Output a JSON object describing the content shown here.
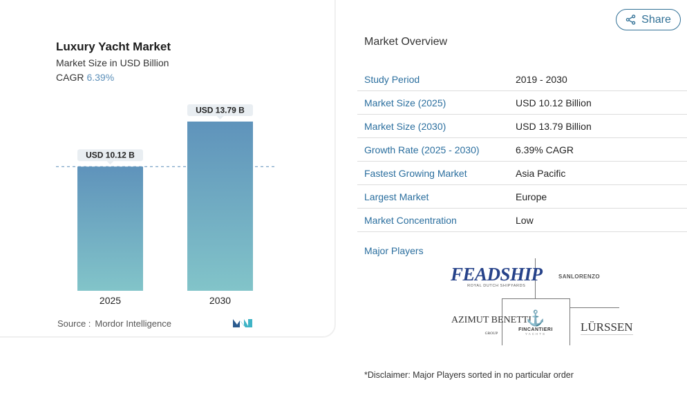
{
  "card": {
    "title": "Luxury Yacht Market",
    "subtitle": "Market Size in USD Billion",
    "cagr_label": "CAGR",
    "cagr_value": "6.39%",
    "source_label": "Source :",
    "source_value": "Mordor Intelligence",
    "logo_icon": "mordor-intelligence-logo"
  },
  "chart_data": {
    "type": "bar",
    "categories": [
      "2025",
      "2030"
    ],
    "values": [
      10.12,
      13.79
    ],
    "data_labels": [
      "USD 10.12 B",
      "USD 13.79 B"
    ],
    "title": "Luxury Yacht Market",
    "subtitle": "Market Size in USD Billion",
    "reference_line": 10.12,
    "ylim": [
      0,
      13.79
    ],
    "bar_gradient": [
      "#5f93bb",
      "#82c4c9"
    ]
  },
  "share": {
    "label": "Share",
    "icon": "share-icon"
  },
  "overview": {
    "title": "Market Overview",
    "rows": [
      {
        "key": "Study Period",
        "value": "2019 - 2030"
      },
      {
        "key": "Market Size (2025)",
        "value": "USD 10.12 Billion"
      },
      {
        "key": "Market Size (2030)",
        "value": "USD 13.79 Billion"
      },
      {
        "key": "Growth Rate (2025 - 2030)",
        "value": "6.39% CAGR"
      },
      {
        "key": "Fastest Growing Market",
        "value": "Asia Pacific"
      },
      {
        "key": "Largest Market",
        "value": "Europe"
      },
      {
        "key": "Market Concentration",
        "value": "Low"
      }
    ]
  },
  "players": {
    "title": "Major Players",
    "feadship": "FEADSHIP",
    "feadship_sub": "ROYAL DUTCH SHIPYARDS",
    "sanlorenzo": "SANLORENZO",
    "azimut": "AZIMUT BENETTI",
    "azimut_sub": "GROUP",
    "fincantieri": "FINCANTIERI",
    "fincantieri_sub": "YACHTS",
    "lurssen": "LÜRSSEN"
  },
  "disclaimer": "*Disclaimer: Major Players sorted in no particular order",
  "colors": {
    "accent": "#2a6e9e",
    "cagr": "#5b8fb9",
    "bar_top": "#5f93bb",
    "bar_bottom": "#82c4c9"
  }
}
